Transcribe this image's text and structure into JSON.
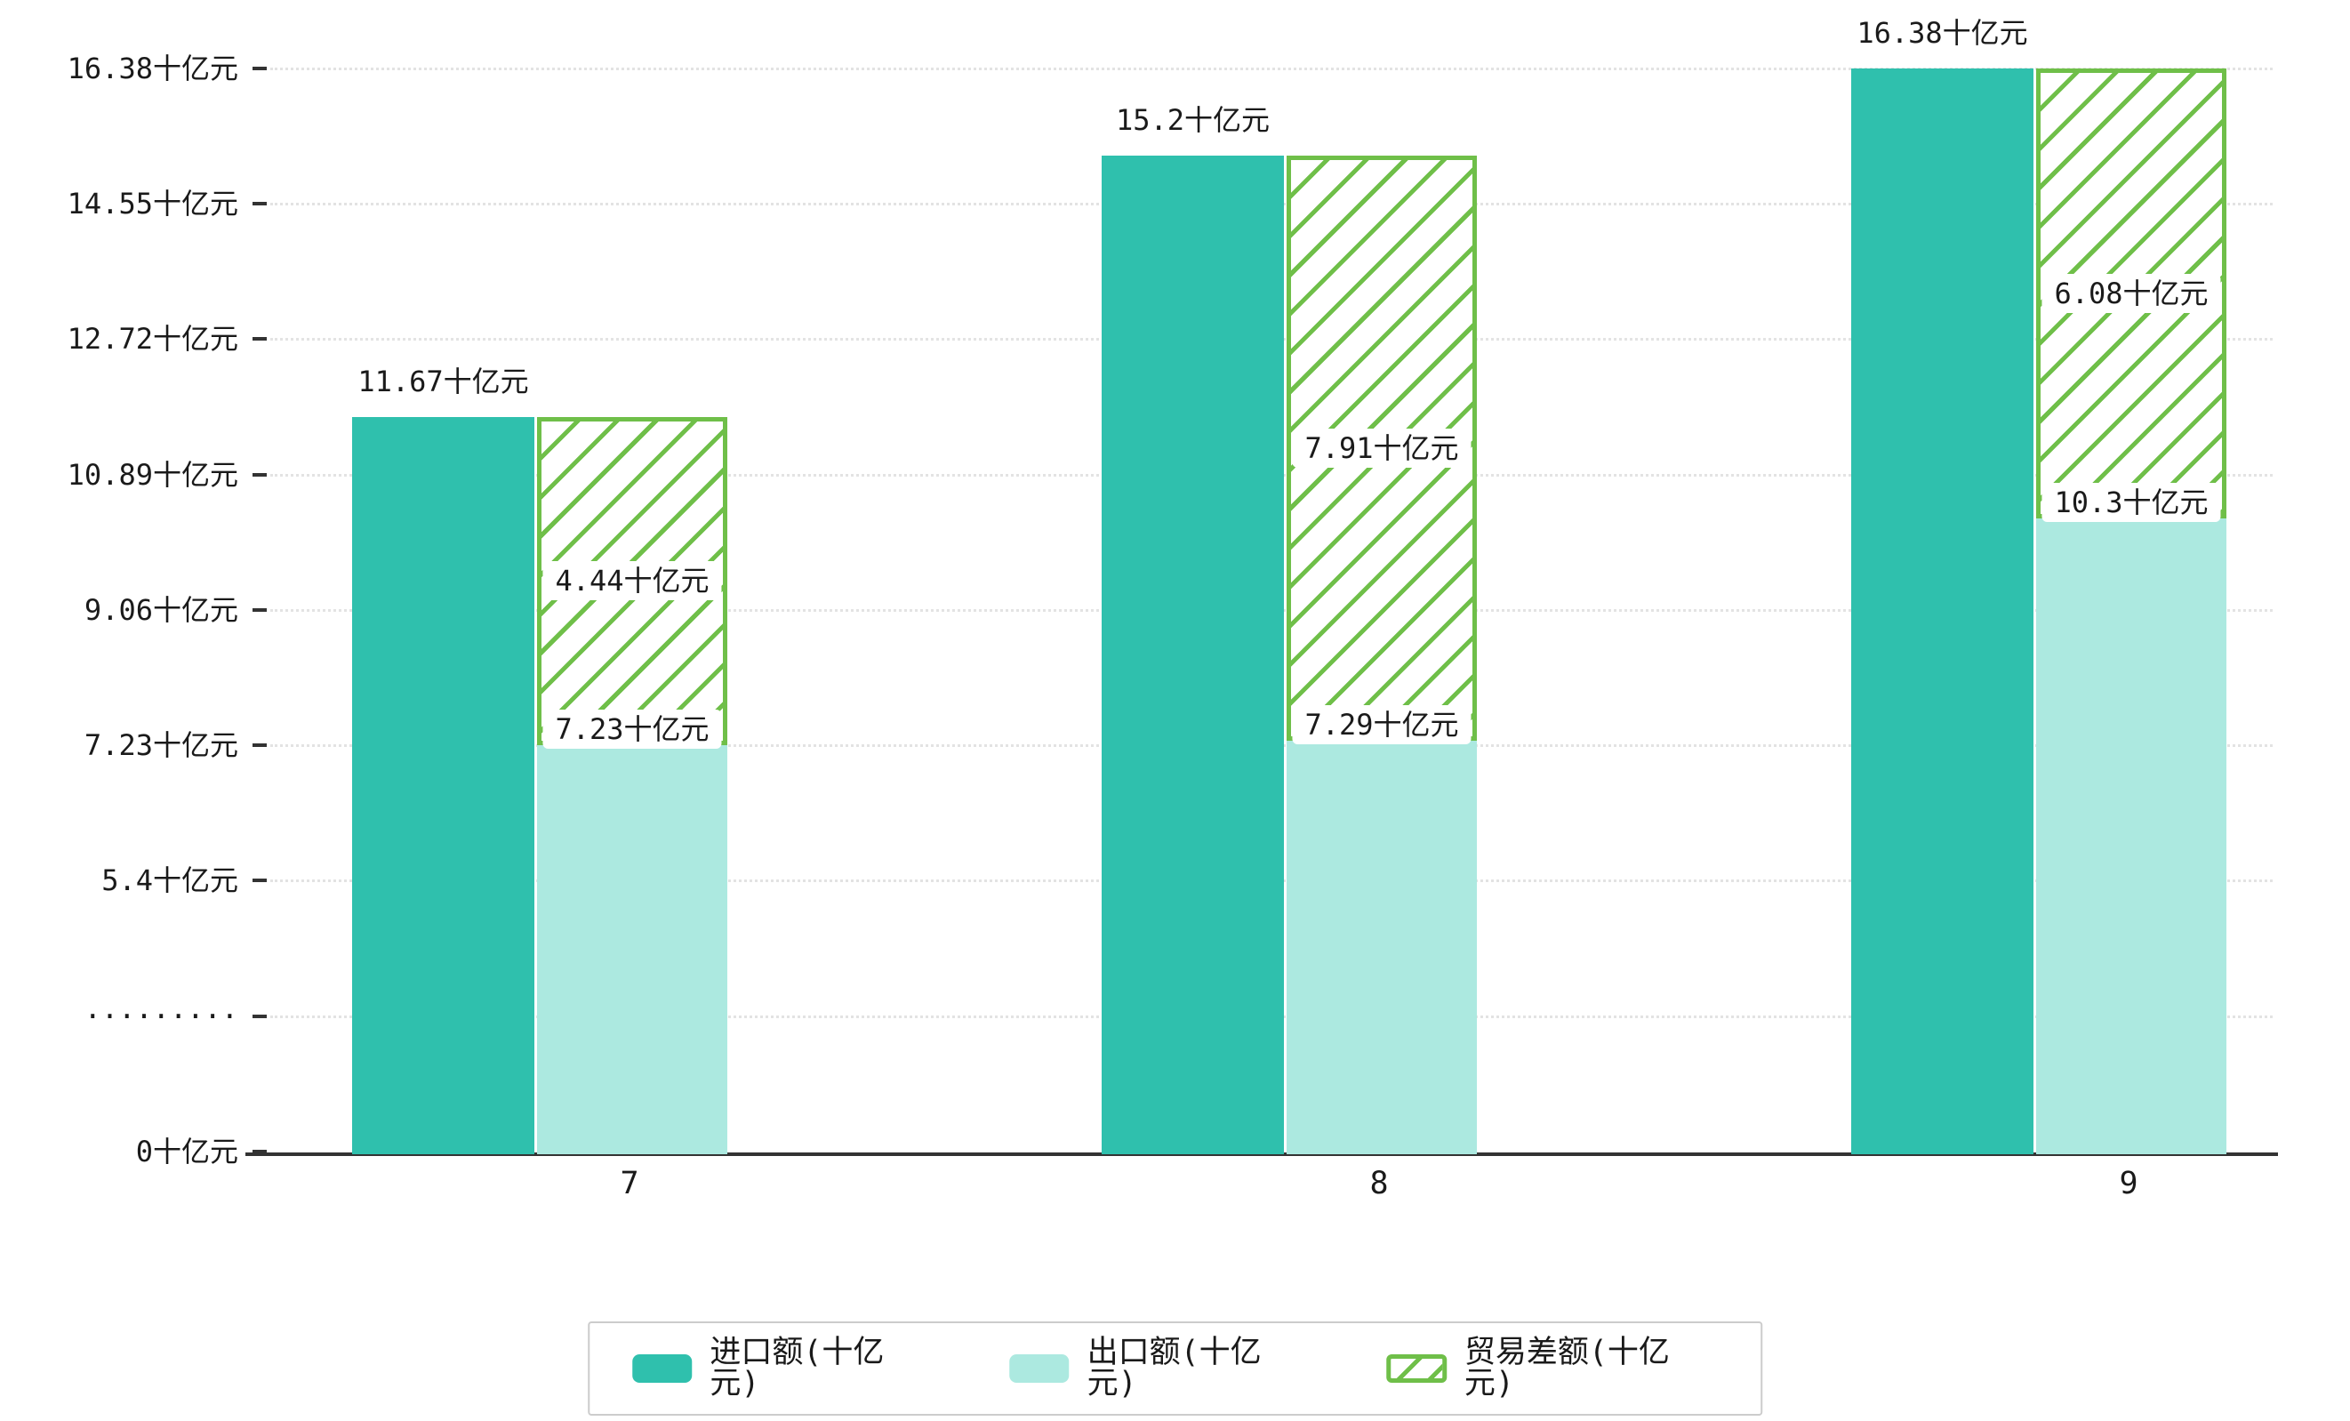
{
  "chart_data": {
    "type": "bar",
    "title": "",
    "xlabel": "",
    "ylabel": "",
    "unit": "十亿元",
    "categories": [
      "7",
      "8",
      "9"
    ],
    "series": [
      {
        "name": "进口额(十亿元)",
        "color": "#2fc0ad",
        "values": [
          11.67,
          15.2,
          16.38
        ],
        "labels": [
          "11.67十亿元",
          "15.2十亿元",
          "16.38十亿元"
        ]
      },
      {
        "name": "出口额(十亿元)",
        "color": "#ace9e0",
        "values": [
          7.23,
          7.29,
          10.3
        ],
        "labels": [
          "7.23十亿元",
          "7.29十亿元",
          "10.3十亿元"
        ]
      },
      {
        "name": "贸易差额(十亿元)",
        "color": "#6fbf49",
        "style": "hatched",
        "stacked_on": "出口额(十亿元)",
        "values": [
          4.44,
          7.91,
          6.08
        ],
        "labels": [
          "4.44十亿元",
          "7.91十亿元",
          "6.08十亿元"
        ]
      }
    ],
    "y_axis": {
      "broken_axis": true,
      "ticks": [
        "0十亿元",
        "·········",
        "5.4十亿元",
        "7.23十亿元",
        "9.06十亿元",
        "10.89十亿元",
        "12.72十亿元",
        "14.55十亿元",
        "16.38十亿元"
      ],
      "tick_values": [
        0,
        null,
        5.4,
        7.23,
        9.06,
        10.89,
        12.72,
        14.55,
        16.38
      ],
      "ylim": [
        0,
        16.38
      ]
    },
    "grid": true,
    "legend_position": "bottom",
    "colors": {
      "axis": "#333333",
      "gridline": "#e3e3e3",
      "legend_border": "#cccccc",
      "text": "#1a1a1a",
      "label_box_background": "#ffffff"
    }
  }
}
